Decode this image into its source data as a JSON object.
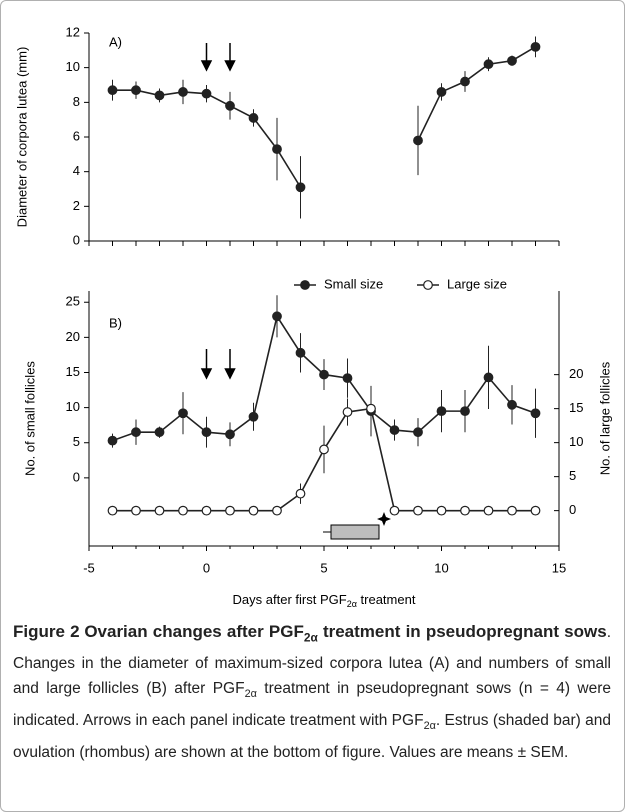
{
  "chart_data": [
    {
      "type": "line",
      "label": "A)",
      "ylabel": "Diameter of corpora lutea (mm)",
      "x": [
        -4,
        -3,
        -2,
        -1,
        0,
        1,
        2,
        3,
        4,
        5,
        6,
        7,
        8,
        9,
        10,
        11,
        12,
        13,
        14
      ],
      "values": [
        8.7,
        8.7,
        8.4,
        8.6,
        8.5,
        7.8,
        7.1,
        5.3,
        3.1,
        null,
        null,
        null,
        null,
        5.8,
        8.6,
        9.2,
        10.2,
        10.4,
        11.2
      ],
      "errors": [
        0.6,
        0.5,
        0.4,
        0.7,
        0.5,
        0.8,
        0.5,
        1.8,
        1.8,
        null,
        null,
        null,
        null,
        2.0,
        0.5,
        0.6,
        0.4,
        0.3,
        0.6
      ],
      "color": "#222222",
      "marker": "filled",
      "xlim": [
        -5,
        15
      ],
      "xticks": [
        -5,
        -4,
        -3,
        -2,
        -1,
        0,
        1,
        2,
        3,
        4,
        5,
        6,
        7,
        8,
        9,
        10,
        11,
        12,
        13,
        14,
        15
      ],
      "ylim": [
        0,
        12
      ],
      "yticks": [
        0,
        2,
        4,
        6,
        8,
        10,
        12
      ]
    },
    {
      "type": "line",
      "label": "B)",
      "xlabel": [
        "Days after first PGF",
        "2α",
        " treatment"
      ],
      "ylabel": "No. of  small follicles",
      "y2label": "No. of  large follicles",
      "x": [
        -4,
        -3,
        -2,
        -1,
        0,
        1,
        2,
        3,
        4,
        5,
        6,
        7,
        8,
        9,
        10,
        11,
        12,
        13,
        14
      ],
      "series": [
        {
          "name": "Small size",
          "color": "#222222",
          "marker": "filled",
          "values": [
            5.3,
            6.5,
            6.5,
            9.2,
            6.5,
            6.2,
            8.7,
            23,
            17.8,
            14.7,
            14.2,
            9.5,
            6.8,
            6.5,
            9.5,
            9.5,
            14.3,
            10.4,
            9.2
          ],
          "errors": [
            1.0,
            1.8,
            0.8,
            3.0,
            2.2,
            1.7,
            2.0,
            3.0,
            2.8,
            2.2,
            2.8,
            3.6,
            1.5,
            2.0,
            3.0,
            3.0,
            4.5,
            2.8,
            3.5
          ]
        },
        {
          "name": "Large size",
          "color": "#222222",
          "marker": "open",
          "axis": "y2",
          "values": [
            0,
            0,
            0,
            0,
            0,
            0,
            0,
            0,
            2.5,
            9,
            14.5,
            15,
            0,
            0,
            0,
            0,
            0,
            0,
            0
          ],
          "errors": [
            null,
            null,
            null,
            null,
            null,
            null,
            null,
            null,
            1.5,
            3.5,
            2.0,
            null,
            null,
            null,
            null,
            null,
            null,
            null,
            null
          ]
        }
      ],
      "legend": "top",
      "xlim": [
        -5,
        15
      ],
      "xticks": [
        -5,
        0,
        5,
        10,
        15
      ],
      "ylim": [
        -9.7,
        26.6
      ],
      "yticks": [
        0,
        5,
        10,
        15,
        20,
        25
      ],
      "y2lim": [
        -5.2,
        32.3
      ],
      "y2ticks": [
        0,
        5,
        10,
        15,
        20
      ]
    }
  ],
  "caption": {
    "label": "Figure 2",
    "title": [
      "Ovarian changes after PGF",
      "2α",
      " treatment in pseudopregnant sows"
    ],
    "text": [
      ". Changes in the diameter of maximum-sized corpora lutea (A) and numbers of small and large follicles (B) after PGF",
      "2α",
      " treatment in pseudopregnant sows (n = 4) were indicated. Arrows in each panel indicate treatment with PGF",
      "2α",
      ". Estrus (shaded bar) and ovulation (rhombus) are shown at the bottom of figure. Values are means ± SEM."
    ]
  }
}
